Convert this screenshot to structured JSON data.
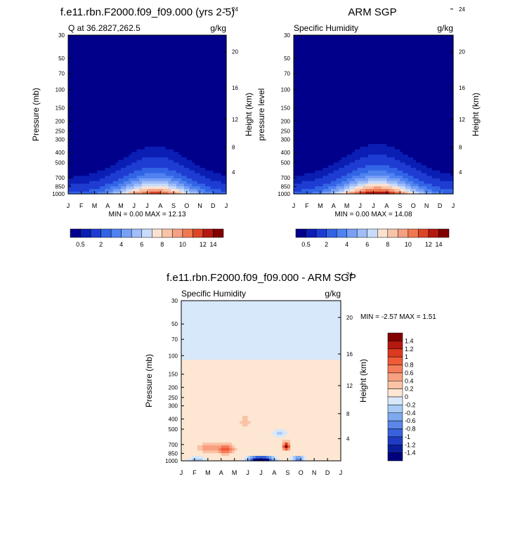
{
  "chart_data": [
    {
      "type": "heatmap",
      "title": "f.e11.rbn.F2000.f09_f09.000 (yrs 2-5)",
      "left_label": "Q at 36.2827,262.5",
      "right_label": "g/kg",
      "ylabel": "Pressure (mb)",
      "y2label": "Height (km)",
      "x": [
        "J",
        "F",
        "M",
        "A",
        "M",
        "J",
        "J",
        "A",
        "S",
        "O",
        "N",
        "D",
        "J"
      ],
      "pressure_ticks": [
        30,
        50,
        70,
        100,
        150,
        200,
        250,
        300,
        400,
        500,
        700,
        850,
        1000
      ],
      "height_ticks": [
        4,
        8,
        12,
        16,
        20,
        24
      ],
      "stats": "MIN =   0.00 MAX =  12.13",
      "field": {
        "surface_peak": 12.13,
        "min": 0.0,
        "peak_month_index": 6.6,
        "moist_top_mb": 430
      },
      "colorbar": {
        "labels": [
          "0.5",
          "2",
          "4",
          "6",
          "8",
          "10",
          "12",
          "14"
        ],
        "colors": [
          "#00008B",
          "#0A1EB4",
          "#1E3CD2",
          "#3264E6",
          "#5082F0",
          "#78A0F5",
          "#A0BEF8",
          "#C8DCFA",
          "#FBE1D2",
          "#F8C3A8",
          "#F5A082",
          "#F07850",
          "#DC4628",
          "#B4190F",
          "#820000"
        ]
      }
    },
    {
      "type": "heatmap",
      "title": "ARM SGP",
      "left_label": "Specific Humidity",
      "right_label": "g/kg",
      "ylabel": "pressure level",
      "y2label": "Height (km)",
      "x": [
        "J",
        "F",
        "M",
        "A",
        "M",
        "J",
        "J",
        "A",
        "S",
        "O",
        "N",
        "D",
        "J"
      ],
      "pressure_ticks": [
        30,
        50,
        70,
        100,
        150,
        200,
        250,
        300,
        400,
        500,
        700,
        850,
        1000
      ],
      "height_ticks": [
        4,
        8,
        12,
        16,
        20,
        24
      ],
      "stats": "MIN =   0.00 MAX =  14.08",
      "field": {
        "surface_peak": 14.08,
        "min": 0.0,
        "peak_month_index": 6.3,
        "moist_top_mb": 410
      },
      "colorbar": {
        "labels": [
          "0.5",
          "2",
          "4",
          "6",
          "8",
          "10",
          "12",
          "14"
        ],
        "colors": [
          "#00008B",
          "#0A1EB4",
          "#1E3CD2",
          "#3264E6",
          "#5082F0",
          "#78A0F5",
          "#A0BEF8",
          "#C8DCFA",
          "#FBE1D2",
          "#F8C3A8",
          "#F5A082",
          "#F07850",
          "#DC4628",
          "#B4190F",
          "#820000"
        ]
      }
    },
    {
      "type": "heatmap",
      "title": "f.e11.rbn.F2000.f09_f09.000 - ARM SGP",
      "left_label": "Specific Humidity",
      "right_label": "g/kg",
      "ylabel": "Pressure (mb)",
      "y2label": "Height (km)",
      "x": [
        "J",
        "F",
        "M",
        "A",
        "M",
        "J",
        "J",
        "A",
        "S",
        "O",
        "N",
        "D",
        "J"
      ],
      "pressure_ticks": [
        30,
        50,
        70,
        100,
        150,
        200,
        250,
        300,
        400,
        500,
        700,
        850,
        1000
      ],
      "height_ticks": [
        4,
        8,
        12,
        16,
        20,
        24
      ],
      "stats": "MIN =  -2.57 MAX =   1.51",
      "field": {
        "min": -2.57,
        "max": 1.51
      },
      "colorbar": {
        "labels": [
          "1.4",
          "1.2",
          "1",
          "0.8",
          "0.6",
          "0.4",
          "0.2",
          "0",
          "-0.2",
          "-0.4",
          "-0.6",
          "-0.8",
          "-1",
          "-1.2",
          "-1.4"
        ],
        "colors": [
          "#820000",
          "#B4190F",
          "#DC3A1E",
          "#F05A37",
          "#F57D5A",
          "#F7A07F",
          "#FAC3A5",
          "#FDE6D2",
          "#D6E8FA",
          "#A8CAF5",
          "#7EA8F0",
          "#5A86E8",
          "#3762DC",
          "#1E3CC3",
          "#0A1E9B",
          "#00007D"
        ]
      }
    }
  ]
}
